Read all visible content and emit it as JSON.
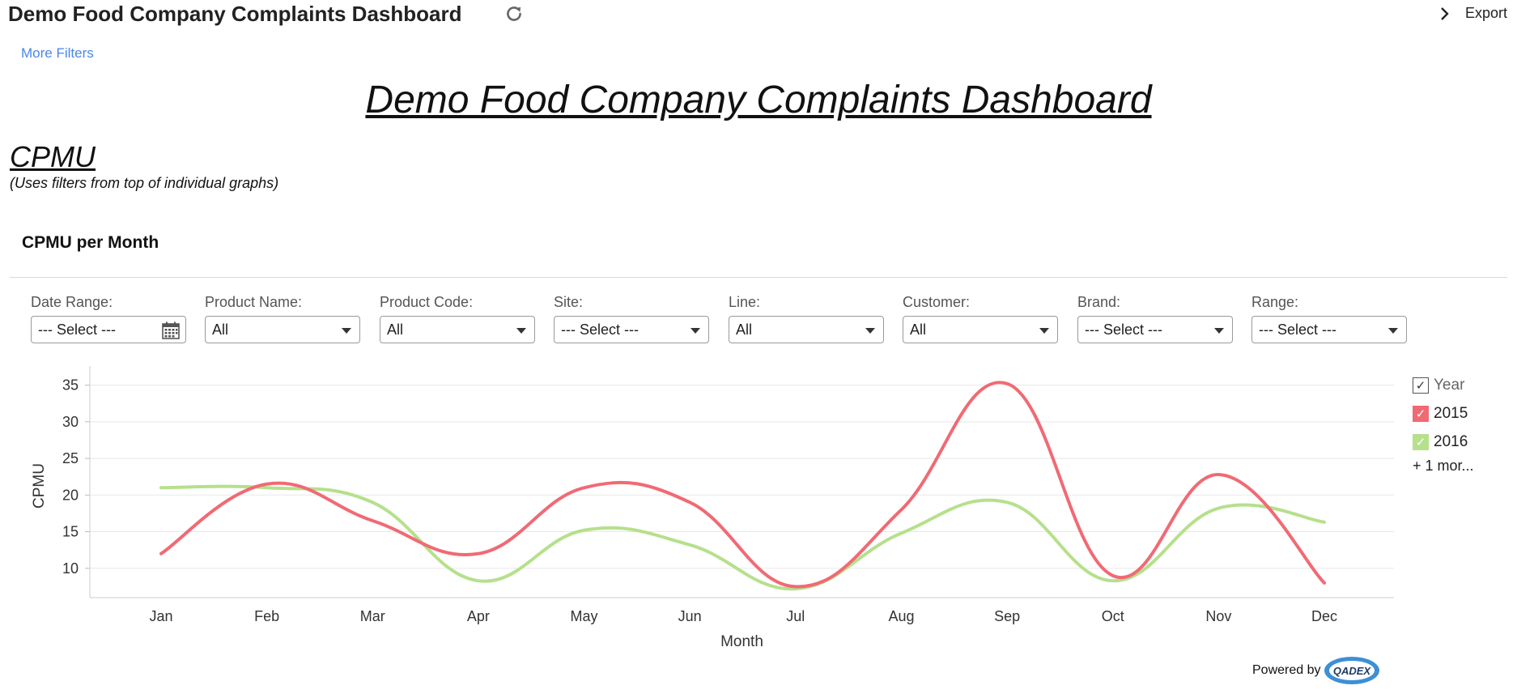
{
  "header": {
    "title": "Demo Food Company Complaints Dashboard",
    "export_label": "Export",
    "more_filters": "More Filters"
  },
  "dashboard": {
    "title": "Demo Food Company Complaints Dashboard",
    "section_heading": "CPMU",
    "section_note": "(Uses filters from top of individual graphs)",
    "widget_title": "CPMU per Month"
  },
  "filters": [
    {
      "label": "Date Range:",
      "value": "--- Select ---"
    },
    {
      "label": "Product Name:",
      "value": "All"
    },
    {
      "label": "Product Code:",
      "value": "All"
    },
    {
      "label": "Site:",
      "value": "--- Select ---"
    },
    {
      "label": "Line:",
      "value": "All"
    },
    {
      "label": "Customer:",
      "value": "All"
    },
    {
      "label": "Brand:",
      "value": "--- Select ---"
    },
    {
      "label": "Range:",
      "value": "--- Select ---"
    }
  ],
  "legend": {
    "header": "Year",
    "more": "+ 1 mor..."
  },
  "powered_by": {
    "label": "Powered by",
    "logo_text": "QADEX"
  },
  "chart_data": {
    "type": "line",
    "title": "CPMU per Month",
    "xlabel": "Month",
    "ylabel": "CPMU",
    "categories": [
      "Jan",
      "Feb",
      "Mar",
      "Apr",
      "May",
      "Jun",
      "Jul",
      "Aug",
      "Sep",
      "Oct",
      "Nov",
      "Dec"
    ],
    "yticks": [
      10,
      15,
      20,
      25,
      30,
      35
    ],
    "ylim": [
      6,
      36.5
    ],
    "grid": true,
    "legend_position": "right",
    "series": [
      {
        "name": "2015",
        "color": "#f06a74",
        "values": [
          12,
          21.5,
          16.5,
          12,
          21,
          19,
          7.5,
          18,
          35.2,
          9,
          22.8,
          8
        ]
      },
      {
        "name": "2016",
        "color": "#b6e08c",
        "values": [
          21,
          21,
          19,
          8.3,
          15.2,
          13.2,
          7.2,
          14.8,
          19,
          8.3,
          18.2,
          16.3
        ]
      }
    ]
  }
}
